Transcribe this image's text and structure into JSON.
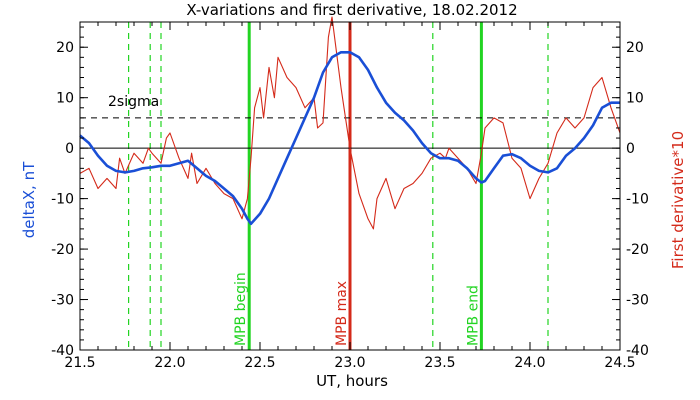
{
  "chart_data": {
    "type": "line",
    "title": "X-variations and first derivative, 18.02.2012",
    "xlabel": "UT, hours",
    "ylabel_left": "deltaX, nT",
    "ylabel_right": "First derivative*10",
    "xlim": [
      21.5,
      24.5
    ],
    "ylim_left": [
      -40,
      25
    ],
    "ylim_right": [
      -40,
      25
    ],
    "x_ticks": [
      "21.5",
      "22.0",
      "22.5",
      "23.0",
      "23.5",
      "24.0",
      "24.5"
    ],
    "y_ticks_left": [
      "20",
      "10",
      "0",
      "-10",
      "-20",
      "-30",
      "-40"
    ],
    "y_ticks_right": [
      "20",
      "10",
      "0",
      "-10",
      "-20",
      "-30",
      "-40"
    ],
    "colors": {
      "deltaX": "#1a4fd6",
      "derivative": "#d42a1a",
      "green": "#22d422",
      "red_marker": "#d42a1a",
      "axes": "#000000"
    },
    "series": [
      {
        "name": "deltaX, nT",
        "axis": "left",
        "x": [
          21.5,
          21.55,
          21.6,
          21.65,
          21.7,
          21.75,
          21.8,
          21.85,
          21.9,
          21.95,
          22.0,
          22.05,
          22.1,
          22.15,
          22.2,
          22.25,
          22.3,
          22.35,
          22.4,
          22.43,
          22.45,
          22.5,
          22.55,
          22.6,
          22.65,
          22.7,
          22.75,
          22.8,
          22.85,
          22.9,
          22.95,
          23.0,
          23.05,
          23.1,
          23.15,
          23.2,
          23.25,
          23.3,
          23.35,
          23.4,
          23.45,
          23.5,
          23.55,
          23.6,
          23.65,
          23.7,
          23.73,
          23.75,
          23.8,
          23.85,
          23.9,
          23.95,
          24.0,
          24.05,
          24.1,
          24.15,
          24.2,
          24.25,
          24.3,
          24.35,
          24.4,
          24.45,
          24.5
        ],
        "y": [
          2.5,
          1,
          -1.5,
          -3.5,
          -4.5,
          -4.8,
          -4.5,
          -4,
          -3.8,
          -3.5,
          -3.5,
          -3,
          -2.5,
          -4,
          -5.5,
          -6.5,
          -8,
          -9.5,
          -12,
          -14,
          -15,
          -13,
          -10,
          -6,
          -2,
          2,
          6,
          10,
          15,
          18,
          19,
          19,
          18,
          15.5,
          12,
          9,
          7,
          5.5,
          3.5,
          1,
          -1,
          -2,
          -2,
          -2.5,
          -4,
          -6,
          -6.8,
          -6.5,
          -4,
          -1.5,
          -1.2,
          -2,
          -3.5,
          -4.5,
          -4.8,
          -4,
          -1.5,
          0,
          2,
          4.5,
          8,
          9,
          9
        ]
      },
      {
        "name": "First derivative*10",
        "axis": "right",
        "x": [
          21.5,
          21.55,
          21.6,
          21.65,
          21.7,
          21.72,
          21.75,
          21.8,
          21.85,
          21.88,
          21.9,
          21.95,
          21.98,
          22.0,
          22.05,
          22.1,
          22.12,
          22.15,
          22.2,
          22.25,
          22.3,
          22.35,
          22.4,
          22.43,
          22.45,
          22.47,
          22.5,
          22.52,
          22.55,
          22.58,
          22.6,
          22.65,
          22.7,
          22.75,
          22.8,
          22.82,
          22.85,
          22.88,
          22.9,
          22.95,
          23.0,
          23.05,
          23.1,
          23.13,
          23.15,
          23.2,
          23.25,
          23.3,
          23.35,
          23.4,
          23.45,
          23.5,
          23.53,
          23.55,
          23.6,
          23.65,
          23.7,
          23.73,
          23.75,
          23.8,
          23.85,
          23.9,
          23.95,
          24.0,
          24.05,
          24.1,
          24.15,
          24.2,
          24.25,
          24.3,
          24.35,
          24.4,
          24.45,
          24.5
        ],
        "y": [
          -5,
          -4,
          -8,
          -6,
          -8,
          -2,
          -5,
          -1,
          -3,
          0,
          -1,
          -3,
          2,
          3,
          -2,
          -6,
          -1,
          -7,
          -4,
          -7,
          -9,
          -10,
          -14,
          -10,
          -2,
          8,
          12,
          6,
          16,
          10,
          18,
          14,
          12,
          8,
          10,
          4,
          5,
          22,
          26,
          12,
          0,
          -9,
          -14,
          -16,
          -10,
          -6,
          -12,
          -8,
          -7,
          -5,
          -2,
          -1,
          -2,
          0,
          -2,
          -4,
          -7,
          -1,
          4,
          6,
          5,
          -2,
          -4,
          -10,
          -6,
          -3,
          3,
          6,
          4,
          6,
          12,
          14,
          8,
          3
        ]
      }
    ],
    "vlines": [
      {
        "x": 21.77,
        "color": "green",
        "style": "dashed"
      },
      {
        "x": 21.89,
        "color": "green",
        "style": "dashed"
      },
      {
        "x": 21.95,
        "color": "green",
        "style": "dashed"
      },
      {
        "x": 22.44,
        "color": "green",
        "style": "solid",
        "label": "MPB begin"
      },
      {
        "x": 23.0,
        "color": "red_marker",
        "style": "solid",
        "label": "MPB max"
      },
      {
        "x": 23.46,
        "color": "green",
        "style": "dashed"
      },
      {
        "x": 23.73,
        "color": "green",
        "style": "solid",
        "label": "MPB end"
      },
      {
        "x": 24.1,
        "color": "green",
        "style": "dashed"
      }
    ],
    "hlines": [
      {
        "y": 0,
        "style": "solid",
        "color": "#000000"
      },
      {
        "y": 6,
        "style": "dashed",
        "color": "#000000",
        "label": "2sigma"
      }
    ],
    "grid": false
  }
}
